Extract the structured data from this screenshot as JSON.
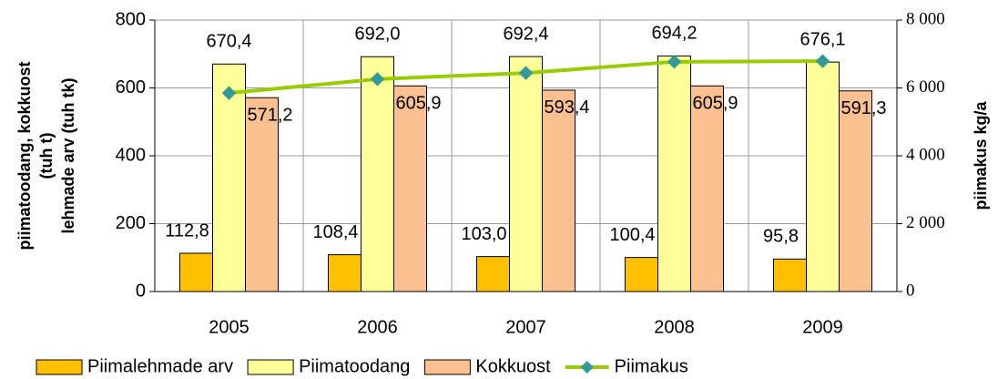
{
  "chart_data": {
    "type": "bar",
    "ylabel": [
      "piimatoodang, kokkuost",
      "(tuh t)",
      "lehmade arv (tuh tk)"
    ],
    "y2label": "piimakus kg/a",
    "categories": [
      "2005",
      "2006",
      "2007",
      "2008",
      "2009"
    ],
    "series": [
      {
        "name": "Piimalehmade arv",
        "color": "#ffc000",
        "values": [
          112.8,
          108.4,
          103.0,
          100.4,
          95.8
        ],
        "value_labels": [
          "112,8",
          "108,4",
          "103,0",
          "100,4",
          "95,8"
        ]
      },
      {
        "name": "Piimatoodang",
        "color": "#ffff99",
        "values": [
          670.4,
          692.0,
          692.4,
          694.2,
          676.1
        ],
        "value_labels": [
          "670,4",
          "692,0",
          "692,4",
          "694,2",
          "676,1"
        ]
      },
      {
        "name": "Kokkuost",
        "color": "#fac090",
        "values": [
          571.2,
          605.9,
          593.4,
          605.9,
          591.3
        ],
        "value_labels": [
          "571,2",
          "605,9",
          "593,4",
          "605,9",
          "591,3"
        ]
      },
      {
        "name": "Piimakus",
        "type": "line",
        "axis": "y2",
        "color": "#99cc00",
        "marker_color": "#339999",
        "values": [
          5850,
          6260,
          6440,
          6770,
          6790
        ]
      }
    ],
    "ylim": [
      0,
      800
    ],
    "yticks": [
      0,
      200,
      400,
      600,
      800
    ],
    "y2lim": [
      0,
      8000
    ],
    "y2ticks": [
      {
        "value": 0,
        "label": "0"
      },
      {
        "value": 2000,
        "label": "2 000"
      },
      {
        "value": 4000,
        "label": "4 000"
      },
      {
        "value": 6000,
        "label": "6 000"
      },
      {
        "value": 8000,
        "label": "8 000"
      }
    ],
    "grid": true
  }
}
